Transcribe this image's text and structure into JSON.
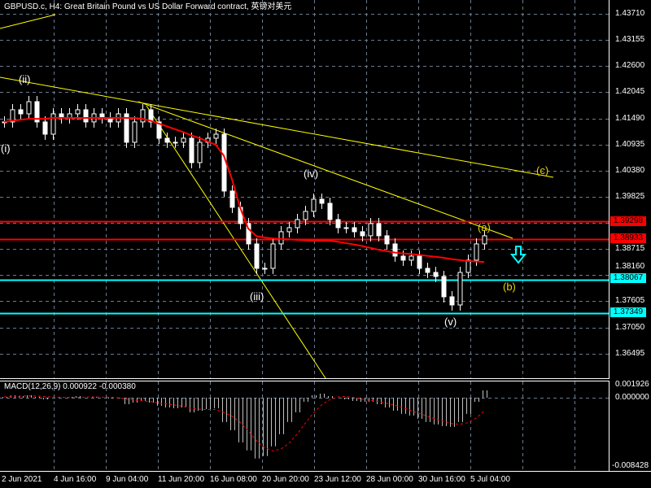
{
  "header": {
    "title": "GBPUSD.c, H4:  Great Britain Pound vs US Dollar Forward contract, 英镑对美元"
  },
  "macd": {
    "title": "MACD(12,26,9) 0.000922 -0.000380",
    "axis_labels": [
      "0.001926",
      "0.000000",
      "-0.008428"
    ]
  },
  "price_axis": {
    "labels": [
      "1.43710",
      "1.43155",
      "1.42600",
      "1.42045",
      "1.41490",
      "1.40935",
      "1.40380",
      "1.39825",
      "1.38715",
      "1.38160",
      "1.37605",
      "1.37050",
      "1.36495"
    ]
  },
  "time_axis": {
    "labels": [
      "2 Jun 2021",
      "4 Jun 16:00",
      "9 Jun 04:00",
      "11 Jun 20:00",
      "16 Jun 08:00",
      "20 Jun 20:00",
      "23 Jun 12:00",
      "28 Jun 00:00",
      "30 Jun 16:00",
      "5 Jul 04:00"
    ]
  },
  "horizontal_lines": [
    {
      "price": "1.39298",
      "color": "#ff0000"
    },
    {
      "price": "1.38933",
      "color": "#ff0000"
    },
    {
      "price": "1.38067",
      "color": "#00ffff"
    },
    {
      "price": "1.37349",
      "color": "#00ffff"
    }
  ],
  "wave_labels": [
    {
      "text": "(i)",
      "color": "#ffffff"
    },
    {
      "text": "(ii)",
      "color": "#ffffff"
    },
    {
      "text": "(iii)",
      "color": "#ffffff"
    },
    {
      "text": "(iv)",
      "color": "#ffffff"
    },
    {
      "text": "(v)",
      "color": "#ffffff"
    },
    {
      "text": "(a)",
      "color": "#e6d200"
    },
    {
      "text": "(b)",
      "color": "#e6d200"
    },
    {
      "text": "(c)",
      "color": "#e6d200"
    }
  ],
  "colors": {
    "background": "#000000",
    "grid": "#6b7a8c",
    "candles": "#ffffff",
    "moving_average": "#ff0000",
    "trendlines": "#ffff00",
    "macd_histogram": "#c0c0c0",
    "macd_signal": "#ff0000",
    "arrow": "#00ffff"
  },
  "arrow_icon": "down-arrow-icon",
  "chart_data": {
    "type": "candlestick",
    "symbol": "GBPUSD.c",
    "timeframe": "H4",
    "ylim": [
      1.3625,
      1.439
    ],
    "closes": [
      1.41414,
      1.41673,
      1.41586,
      1.41845,
      1.41414,
      1.41154,
      1.41586,
      1.415,
      1.41586,
      1.41673,
      1.41414,
      1.41586,
      1.415,
      1.41414,
      1.41586,
      1.40982,
      1.41414,
      1.41673,
      1.41414,
      1.41068,
      1.40982,
      1.40982,
      1.41068,
      1.4055,
      1.40982,
      1.41068,
      1.41154,
      1.39946,
      1.396,
      1.39255,
      1.38823,
      1.38305,
      1.38305,
      1.38823,
      1.39082,
      1.39168,
      1.39341,
      1.39514,
      1.39773,
      1.39686,
      1.39341,
      1.39168,
      1.39168,
      1.39082,
      1.38996,
      1.39255,
      1.38996,
      1.38823,
      1.38564,
      1.38478,
      1.38564,
      1.38305,
      1.38218,
      1.38132,
      1.377,
      1.37527,
      1.38218,
      1.38478,
      1.38823,
      1.38996
    ],
    "moving_average": [
      1.41414,
      1.4144,
      1.4146,
      1.4148,
      1.4148,
      1.4148,
      1.415,
      1.415,
      1.415,
      1.415,
      1.415,
      1.415,
      1.415,
      1.415,
      1.415,
      1.415,
      1.415,
      1.4148,
      1.4144,
      1.4138,
      1.4132,
      1.4126,
      1.412,
      1.4113,
      1.4107,
      1.41,
      1.4093,
      1.407,
      1.402,
      1.396,
      1.3915,
      1.3899,
      1.3896,
      1.3894,
      1.3893,
      1.3892,
      1.3891,
      1.389,
      1.3889,
      1.3889,
      1.3889,
      1.3887,
      1.3884,
      1.3881,
      1.3878,
      1.3874,
      1.387,
      1.3867,
      1.3864,
      1.3862,
      1.3861,
      1.3859,
      1.3857,
      1.3855,
      1.3853,
      1.385,
      1.3848,
      1.3846,
      1.3845,
      1.3844
    ],
    "macd_histogram": [
      0.0001,
      0.0003,
      0.0002,
      0.0003,
      0.0001,
      -0.0002,
      0.0,
      0.0001,
      0.0001,
      0.0002,
      0.0,
      0.0001,
      0.0,
      -0.0001,
      0.0,
      -0.0008,
      -0.0006,
      -0.0004,
      -0.0006,
      -0.001,
      -0.0012,
      -0.0013,
      -0.0012,
      -0.0018,
      -0.0016,
      -0.0014,
      -0.0013,
      -0.003,
      -0.004,
      -0.0055,
      -0.0065,
      -0.0075,
      -0.0072,
      -0.006,
      -0.0045,
      -0.003,
      -0.0018,
      -0.0005,
      0.0003,
      0.0005,
      0.0002,
      0.0,
      -0.0002,
      -0.0004,
      -0.0005,
      -0.0005,
      -0.0008,
      -0.0012,
      -0.0016,
      -0.002,
      -0.0022,
      -0.0026,
      -0.003,
      -0.0033,
      -0.0035,
      -0.0036,
      -0.003,
      -0.002,
      -0.0005,
      0.0009
    ],
    "macd_ylim": [
      -0.008428,
      0.001926
    ]
  }
}
